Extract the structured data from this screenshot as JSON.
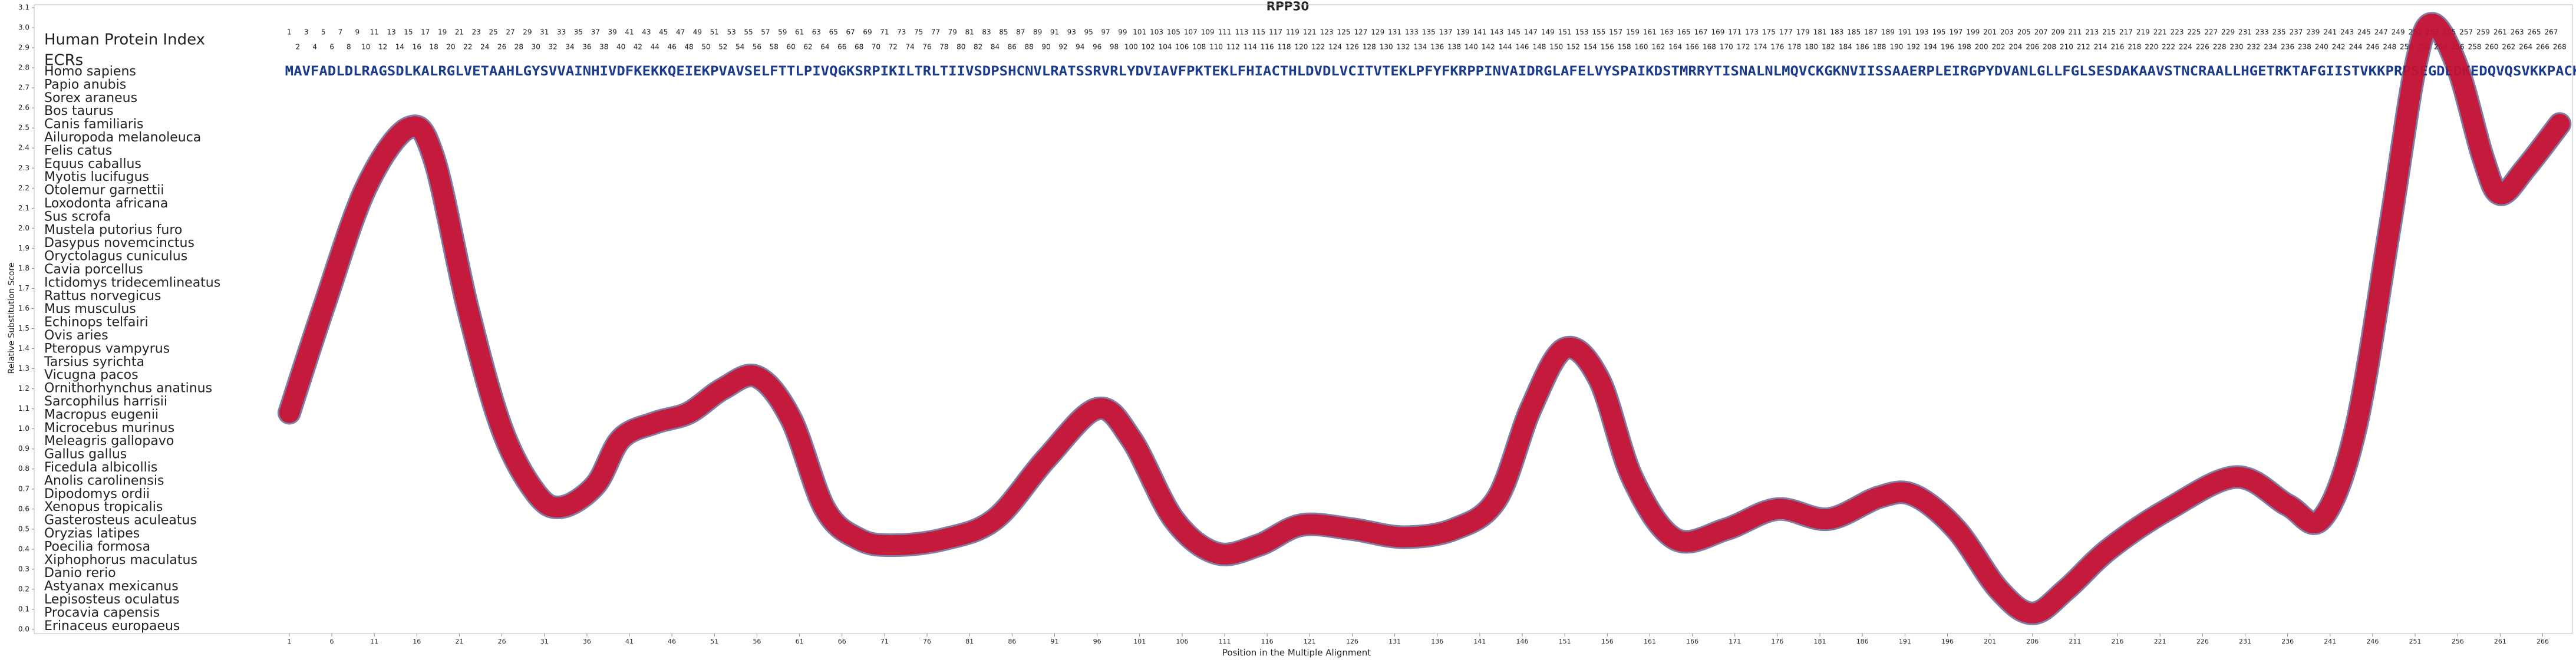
{
  "chart_data": {
    "type": "line",
    "title": "RPP30",
    "y_label": "Relative Substitution Score",
    "x_label": "Position in the Multiple Alignment",
    "row_header": "Human Protein Index",
    "ecr_label": "ECRs",
    "alignment_positions": [
      1,
      2,
      3,
      4,
      5,
      6,
      7,
      8,
      9,
      10,
      11,
      12,
      13,
      14,
      15,
      16,
      17,
      18,
      19,
      20,
      21,
      22,
      23,
      24,
      25,
      26,
      27,
      28,
      29,
      30,
      31,
      32,
      33,
      34,
      35,
      36,
      37,
      38,
      39,
      40,
      41,
      42,
      43,
      44,
      45,
      46,
      47,
      48,
      49,
      50,
      51,
      52,
      53,
      54,
      55,
      56,
      57,
      58,
      59,
      60,
      61,
      62,
      63,
      64,
      65,
      66,
      67,
      68,
      69,
      70,
      71,
      72,
      73,
      74,
      75,
      76,
      77,
      78,
      79,
      80,
      81,
      82,
      83,
      84,
      85,
      86,
      87,
      88,
      89,
      90,
      91,
      92,
      93,
      94,
      95,
      96,
      97,
      98,
      99,
      100,
      101,
      102,
      103,
      104,
      105,
      106,
      107,
      108,
      109,
      110,
      111,
      112,
      113,
      114,
      115,
      116,
      117,
      118,
      119,
      120,
      121,
      122,
      123,
      124,
      125,
      126,
      127,
      128,
      129,
      130,
      131,
      132,
      133,
      134,
      135,
      136,
      137,
      138,
      139,
      140,
      141,
      142,
      143,
      144,
      145,
      146,
      147,
      148,
      149,
      150,
      151,
      152,
      153,
      154,
      155,
      156,
      157,
      158,
      159,
      160,
      161,
      162,
      163,
      164,
      165,
      166,
      167,
      168,
      169,
      170,
      171,
      172,
      173,
      174,
      175,
      176,
      177,
      178,
      179,
      180,
      181,
      182,
      183,
      184,
      185,
      186,
      187,
      188,
      189,
      190,
      191,
      192,
      193,
      194,
      195,
      196,
      197,
      198,
      199,
      200,
      201,
      202,
      203,
      204,
      205,
      206,
      207,
      208,
      209,
      210,
      211,
      212,
      213,
      214,
      215,
      216,
      217,
      218,
      219,
      220,
      221,
      222,
      223,
      224,
      225,
      226,
      227,
      228,
      229,
      230,
      231,
      232,
      233,
      234,
      235,
      236,
      237,
      238,
      239,
      240,
      241,
      242,
      243,
      244,
      245,
      246,
      247,
      248,
      249,
      250,
      251,
      252,
      253,
      254,
      255,
      256,
      257,
      258,
      259,
      260,
      261,
      262,
      263,
      264,
      265,
      266,
      267,
      268
    ],
    "species": [
      "Homo sapiens",
      "Papio anubis",
      "Sorex araneus",
      "Bos taurus",
      "Canis familiaris",
      "Ailuropoda melanoleuca",
      "Felis catus",
      "Equus caballus",
      "Myotis lucifugus",
      "Otolemur garnettii",
      "Loxodonta africana",
      "Sus scrofa",
      "Mustela putorius furo",
      "Dasypus novemcinctus",
      "Oryctolagus cuniculus",
      "Cavia porcellus",
      "Ictidomys tridecemlineatus",
      "Rattus norvegicus",
      "Mus musculus",
      "Echinops telfairi",
      "Ovis aries",
      "Pteropus vampyrus",
      "Tarsius syrichta",
      "Vicugna pacos",
      "Ornithorhynchus anatinus",
      "Sarcophilus harrisii",
      "Macropus eugenii",
      "Microcebus murinus",
      "Meleagris gallopavo",
      "Gallus gallus",
      "Ficedula albicollis",
      "Anolis carolinensis",
      "Dipodomys ordii",
      "Xenopus tropicalis",
      "Gasterosteus aculeatus",
      "Oryzias latipes",
      "Poecilia formosa",
      "Xiphophorus maculatus",
      "Danio rerio",
      "Astyanax mexicanus",
      "Lepisosteus oculatus",
      "Procavia capensis",
      "Erinaceus europaeus"
    ],
    "human_sequence": "MAVFADLDLRAGSDLKALRGLVETAAHLGYSVVAINHIVDFKEKKQEIEKPVAVSELFTTLPIVQGKSRPIKILTRLTIIVSDPSHCNVLRATSSRVRLYDVIAVFPKTEKLFHIACTHLDVDLVCITVTEKLPFYFKRPPINVAIDRGLAFELVYSPAIKDSTMRRYTISNALNLMQVCKGKNVIISSAAERPLEIRGPYDVANLGLLFGLSESDAKAAVSTNCRAALLHGETRKTAFGIISTVKKPRPSEGDEDKEDQVQSVKKPACKKAKCWSH",
    "x": [
      1,
      5,
      10,
      15,
      18,
      22,
      26,
      30,
      33,
      37,
      40,
      44,
      48,
      52,
      56,
      60,
      64,
      68,
      72,
      78,
      84,
      90,
      96,
      100,
      105,
      110,
      115,
      120,
      126,
      132,
      138,
      143,
      147,
      151,
      155,
      159,
      164,
      170,
      176,
      182,
      188,
      192,
      197,
      202,
      206,
      210,
      215,
      222,
      230,
      236,
      240,
      244,
      248,
      251,
      253,
      256,
      259,
      261,
      264,
      268
    ],
    "series": [
      {
        "name": "Relative Substitution Score",
        "color": "#cc1030",
        "values": [
          1.08,
          1.6,
          2.2,
          2.5,
          2.35,
          1.6,
          1.0,
          0.68,
          0.61,
          0.72,
          0.95,
          1.03,
          1.08,
          1.2,
          1.26,
          1.05,
          0.6,
          0.45,
          0.42,
          0.45,
          0.55,
          0.85,
          1.1,
          0.95,
          0.55,
          0.38,
          0.42,
          0.52,
          0.5,
          0.46,
          0.5,
          0.65,
          1.1,
          1.4,
          1.25,
          0.75,
          0.45,
          0.5,
          0.6,
          0.55,
          0.66,
          0.67,
          0.5,
          0.2,
          0.08,
          0.2,
          0.4,
          0.6,
          0.76,
          0.62,
          0.55,
          1.0,
          2.0,
          2.8,
          3.02,
          2.8,
          2.35,
          2.17,
          2.3,
          2.52
        ]
      }
    ],
    "xlim": [
      -29,
      269.5
    ],
    "xticks": [
      1,
      6,
      11,
      16,
      21,
      26,
      31,
      36,
      41,
      46,
      51,
      56,
      61,
      66,
      71,
      76,
      81,
      86,
      91,
      96,
      101,
      106,
      111,
      116,
      121,
      126,
      131,
      136,
      141,
      146,
      151,
      156,
      161,
      166,
      171,
      176,
      181,
      186,
      191,
      196,
      201,
      206,
      211,
      216,
      221,
      226,
      231,
      236,
      241,
      246,
      251,
      256,
      261,
      266
    ],
    "ylim": [
      0,
      3.1
    ],
    "yticks": [
      {
        "value": 0,
        "label": "0.0"
      },
      0.1,
      0.2,
      0.3,
      0.4,
      0.5,
      0.6,
      0.7,
      0.8,
      0.9,
      {
        "value": 1,
        "label": "1.0"
      },
      1.1,
      1.2,
      1.3,
      1.4,
      1.5,
      1.6,
      1.7,
      1.8,
      1.9,
      {
        "value": 2,
        "label": "2.0"
      },
      2.1,
      2.2,
      2.3,
      2.4,
      2.5,
      2.6,
      2.7,
      2.8,
      2.9,
      {
        "value": 3,
        "label": "3.0"
      },
      3.1
    ]
  }
}
